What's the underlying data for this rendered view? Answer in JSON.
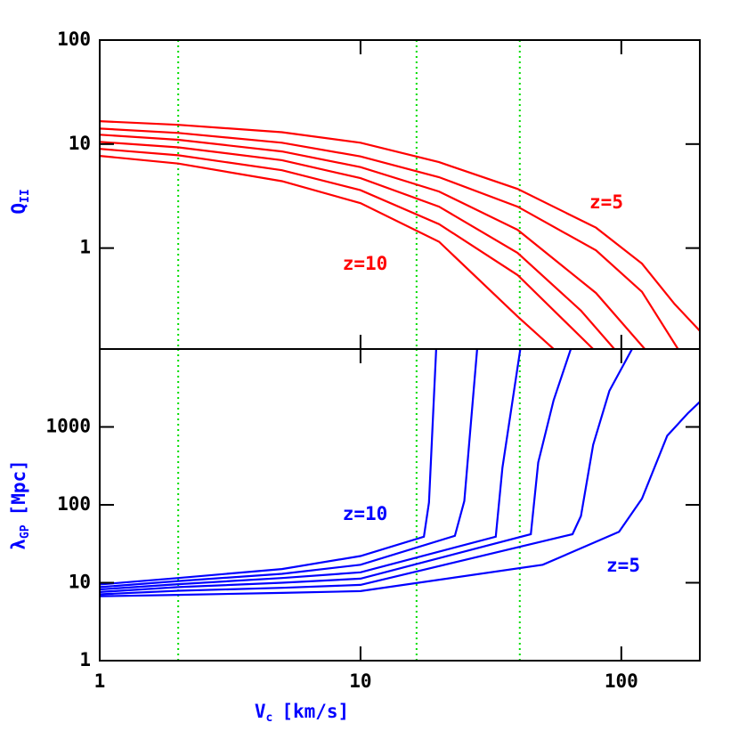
{
  "chart_data": [
    {
      "type": "line",
      "log_x": true,
      "log_y": true,
      "xlim": [
        1,
        200
      ],
      "ylim": [
        0.107,
        100
      ],
      "xticks": [
        1,
        10,
        100
      ],
      "yticks": [
        1,
        10,
        100
      ],
      "ylabel": {
        "main": "Q",
        "sub": "II",
        "color": "#0000ff"
      },
      "vlines": {
        "x": [
          2,
          16.4,
          40.8
        ],
        "color": "#00dd00"
      },
      "annotations": [
        {
          "text": "z=5",
          "color": "#ff0000"
        },
        {
          "text": "z=10",
          "color": "#ff0000"
        }
      ],
      "series": [
        {
          "color": "#ff0000",
          "x": [
            1,
            2,
            5,
            10,
            20,
            40,
            80,
            120,
            160,
            200
          ],
          "values": [
            16.6,
            15.3,
            13,
            10.3,
            6.7,
            3.7,
            1.57,
            0.71,
            0.29,
            0.16
          ]
        },
        {
          "color": "#ff0000",
          "x": [
            1,
            2,
            5,
            10,
            20,
            40,
            80,
            120,
            165
          ],
          "values": [
            14.1,
            12.8,
            10.3,
            7.6,
            4.8,
            2.5,
            0.95,
            0.38,
            0.107
          ]
        },
        {
          "color": "#ff0000",
          "x": [
            1,
            2,
            5,
            10,
            20,
            40,
            80,
            123
          ],
          "values": [
            12.3,
            11,
            8.5,
            6,
            3.5,
            1.5,
            0.37,
            0.107
          ]
        },
        {
          "color": "#ff0000",
          "x": [
            1,
            2,
            5,
            10,
            20,
            40,
            70,
            94
          ],
          "values": [
            10.5,
            9.3,
            7,
            4.7,
            2.5,
            0.9,
            0.25,
            0.107
          ]
        },
        {
          "color": "#ff0000",
          "x": [
            1,
            2,
            5,
            10,
            20,
            40,
            78
          ],
          "values": [
            9,
            7.8,
            5.6,
            3.6,
            1.7,
            0.55,
            0.107
          ]
        },
        {
          "color": "#ff0000",
          "x": [
            1,
            2,
            5,
            10,
            20,
            40,
            55
          ],
          "values": [
            7.7,
            6.5,
            4.4,
            2.7,
            1.15,
            0.22,
            0.107
          ]
        }
      ]
    },
    {
      "type": "line",
      "log_x": true,
      "log_y": true,
      "xlim": [
        1,
        200
      ],
      "ylim": [
        1,
        10000
      ],
      "xticks": [
        1,
        10,
        100
      ],
      "yticks": [
        1,
        10,
        100,
        1000
      ],
      "xlabel": {
        "main": "V",
        "sub": "c",
        "rest": "[km/s]",
        "color": "#0000ff"
      },
      "ylabel": {
        "main": "λ",
        "sub": "GP",
        "rest": "[Mpc]",
        "color": "#0000ff"
      },
      "vlines": {
        "x": [
          2,
          16.4,
          40.8
        ],
        "color": "#00dd00"
      },
      "annotations": [
        {
          "text": "z=10",
          "color": "#0000ff"
        },
        {
          "text": "z=5",
          "color": "#0000ff"
        }
      ],
      "series": [
        {
          "color": "#0000ff",
          "x": [
            1,
            2,
            5,
            10,
            17.5,
            18.3,
            19.5
          ],
          "values": [
            9.5,
            11.5,
            15,
            22,
            39,
            107,
            10000
          ]
        },
        {
          "color": "#0000ff",
          "x": [
            1,
            2,
            5,
            10,
            23,
            25,
            28
          ],
          "values": [
            8.8,
            10.5,
            13,
            17,
            40,
            112,
            10000
          ]
        },
        {
          "color": "#0000ff",
          "x": [
            1,
            2,
            5,
            10,
            33,
            35,
            41
          ],
          "values": [
            8.2,
            9.6,
            11.5,
            13.6,
            39,
            300,
            10000
          ]
        },
        {
          "color": "#0000ff",
          "x": [
            1,
            2,
            5,
            10,
            45,
            48,
            55,
            64
          ],
          "values": [
            7.6,
            8.8,
            10,
            11.3,
            42,
            350,
            2200,
            10000
          ]
        },
        {
          "color": "#0000ff",
          "x": [
            1,
            2,
            5,
            10,
            65,
            70,
            78,
            90,
            110
          ],
          "values": [
            7.1,
            7.9,
            8.6,
            9.4,
            42,
            72,
            590,
            2900,
            10000
          ]
        },
        {
          "color": "#0000ff",
          "x": [
            1,
            2,
            5,
            10,
            50,
            98,
            120,
            150,
            180,
            200
          ],
          "values": [
            6.7,
            7,
            7.4,
            7.8,
            17,
            45,
            120,
            770,
            1500,
            2100
          ]
        }
      ]
    }
  ]
}
